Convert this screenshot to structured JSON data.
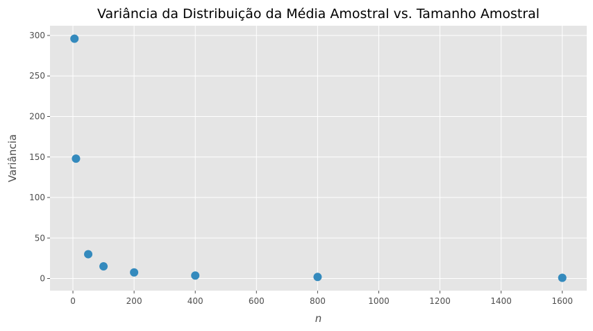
{
  "chart_data": {
    "type": "scatter",
    "title": "Variância da Distribuição da Média Amostral vs. Tamanho Amostral",
    "xlabel": "n",
    "ylabel": "Variância",
    "xlim": [
      -75,
      1680
    ],
    "ylim": [
      -15,
      312
    ],
    "x_ticks": [
      0,
      200,
      400,
      600,
      800,
      1000,
      1200,
      1400,
      1600
    ],
    "y_ticks": [
      0,
      50,
      100,
      150,
      200,
      250,
      300
    ],
    "grid": true,
    "background_color": "#e5e5e5",
    "grid_color": "#ffffff",
    "point_color": "#348abd",
    "points": [
      {
        "x": 5,
        "y": 296
      },
      {
        "x": 10,
        "y": 148
      },
      {
        "x": 50,
        "y": 30
      },
      {
        "x": 100,
        "y": 15
      },
      {
        "x": 200,
        "y": 7.5
      },
      {
        "x": 400,
        "y": 3.7
      },
      {
        "x": 800,
        "y": 1.9
      },
      {
        "x": 1600,
        "y": 0.9
      }
    ]
  }
}
